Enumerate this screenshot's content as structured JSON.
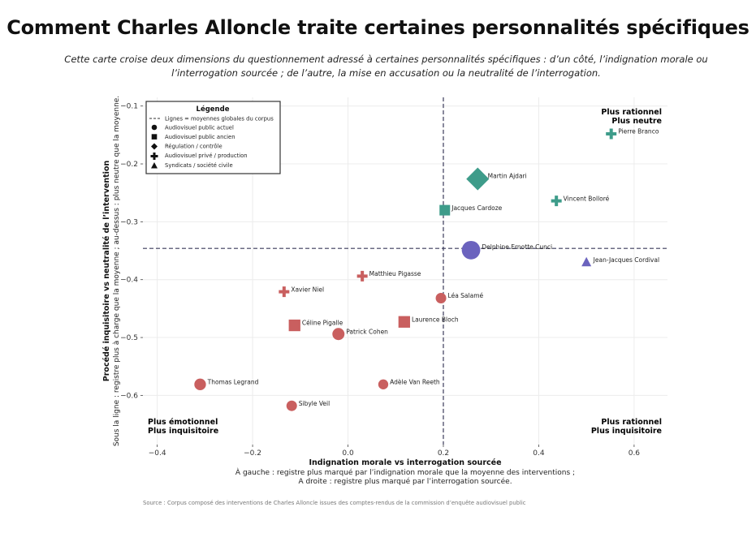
{
  "title": "Comment Charles Alloncle traite certaines personnalités spécifiques",
  "subtitle_line1": "Cette carte croise deux dimensions du questionnement adressé à certaines personnalités spécifiques : d’un côté, l’indignation morale ou",
  "subtitle_line2": "l’interrogation sourcée ; de l’autre, la mise en accusation ou la neutralité de l’interrogation.",
  "colors": {
    "red": "#c95f5f",
    "teal": "#3e9c8a",
    "purple": "#6b63be",
    "grid": "#ececec"
  },
  "chart_data": {
    "type": "scatter",
    "xlabel": "Indignation morale vs interrogation sourcée",
    "xlabel_sub1": "À gauche : registre plus marqué par l’indignation morale que la moyenne des interventions ;",
    "xlabel_sub2": "A droite : registre plus marqué par l’interrogation sourcée.",
    "ylabel": "Procédé inquisitoire vs neutralité de l’intervention",
    "ylabel_sub": "Sous la ligne : registre plus à charge que la moyenne ; au-dessus : plus neutre que la moyenne.",
    "xlim": [
      -0.43,
      0.67
    ],
    "ylim": [
      -0.685,
      -0.085
    ],
    "xticks": [
      "−0.4",
      "−0.2",
      "0.0",
      "0.2",
      "0.4",
      "0.6"
    ],
    "xtick_values": [
      -0.4,
      -0.2,
      0.0,
      0.2,
      0.4,
      0.6
    ],
    "yticks": [
      "−0.1",
      "−0.2",
      "−0.3",
      "−0.4",
      "−0.5",
      "−0.6"
    ],
    "ytick_values": [
      -0.1,
      -0.2,
      -0.3,
      -0.4,
      -0.5,
      -0.6
    ],
    "mean_x": 0.2,
    "mean_y": -0.346,
    "grid": true,
    "legend_position": "top-left",
    "legend": {
      "title": "Légende",
      "items": [
        {
          "label": "Lignes = moyennes globales du corpus",
          "marker": "dashed-line"
        },
        {
          "label": "Audiovisuel public actuel",
          "marker": "circle"
        },
        {
          "label": "Audiovisuel public ancien",
          "marker": "square"
        },
        {
          "label": "Régulation / contrôle",
          "marker": "diamond"
        },
        {
          "label": "Audiovisuel privé / production",
          "marker": "cross"
        },
        {
          "label": "Syndicats / société civile",
          "marker": "triangle"
        }
      ]
    },
    "points": [
      {
        "name": "Pierre Branco",
        "x": 0.552,
        "y": -0.148,
        "marker": "cross",
        "color": "teal",
        "size": 1
      },
      {
        "name": "Martin Ajdari",
        "x": 0.272,
        "y": -0.226,
        "marker": "diamond",
        "color": "teal",
        "size": 1.6
      },
      {
        "name": "Vincent Bolloré",
        "x": 0.437,
        "y": -0.264,
        "marker": "cross",
        "color": "teal",
        "size": 1
      },
      {
        "name": "Jacques Cardoze",
        "x": 0.203,
        "y": -0.28,
        "marker": "square",
        "color": "teal",
        "size": 1
      },
      {
        "name": "Delphine Ernotte Cunci",
        "x": 0.258,
        "y": -0.349,
        "marker": "circle",
        "color": "purple",
        "size": 1.75
      },
      {
        "name": "Jean-Jacques Cordival",
        "x": 0.5,
        "y": -0.37,
        "marker": "triangle",
        "color": "purple",
        "size": 1
      },
      {
        "name": "Matthieu Pigasse",
        "x": 0.03,
        "y": -0.394,
        "marker": "cross",
        "color": "red",
        "size": 1
      },
      {
        "name": "Xavier Niel",
        "x": -0.134,
        "y": -0.421,
        "marker": "cross",
        "color": "red",
        "size": 1
      },
      {
        "name": "Léa Salamé",
        "x": 0.195,
        "y": -0.432,
        "marker": "circle",
        "color": "red",
        "size": 1
      },
      {
        "name": "Laurence Bloch",
        "x": 0.118,
        "y": -0.473,
        "marker": "square",
        "color": "red",
        "size": 1.1
      },
      {
        "name": "Céline Pigalle",
        "x": -0.112,
        "y": -0.479,
        "marker": "square",
        "color": "red",
        "size": 1.1
      },
      {
        "name": "Patrick Cohen",
        "x": -0.02,
        "y": -0.494,
        "marker": "circle",
        "color": "red",
        "size": 1.15
      },
      {
        "name": "Thomas Legrand",
        "x": -0.31,
        "y": -0.581,
        "marker": "circle",
        "color": "red",
        "size": 1.1
      },
      {
        "name": "Adèle Van Reeth",
        "x": 0.074,
        "y": -0.581,
        "marker": "circle",
        "color": "red",
        "size": 0.95
      },
      {
        "name": "Sibyle Veil",
        "x": -0.118,
        "y": -0.618,
        "marker": "circle",
        "color": "red",
        "size": 1
      }
    ],
    "corners": {
      "top_right": [
        "Plus rationnel",
        "Plus neutre"
      ],
      "bottom_left": [
        "Plus émotionnel",
        "Plus inquisitoire"
      ],
      "bottom_right": [
        "Plus rationnel",
        "Plus inquisitoire"
      ]
    }
  },
  "source": "Source : Corpus composé des interventions de Charles Alloncle issues des comptes-rendus de la commission d’enquête audiovisuel public"
}
